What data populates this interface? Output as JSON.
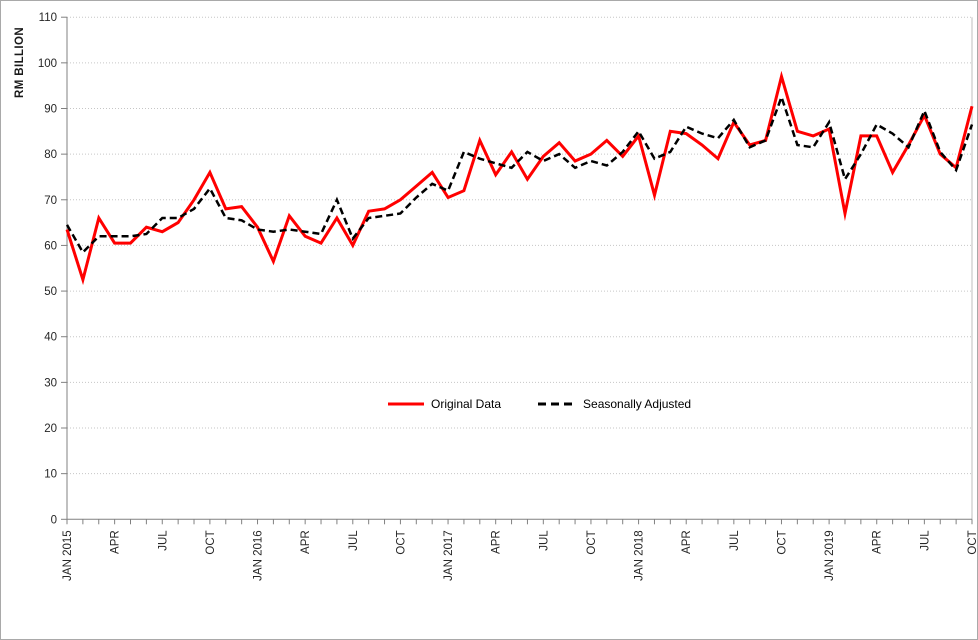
{
  "window": {
    "background": "#FFFFFF",
    "border_color": "#A9A9A9"
  },
  "colors": {
    "gridline": "#C6C6C6",
    "axis_line": "#808080",
    "tick_label": "#262626",
    "plot_right_border": "#BFBFBF",
    "series_original": "#FF0000",
    "series_adjusted": "#000000"
  },
  "chart_data": {
    "type": "line",
    "title": "",
    "xlabel": "",
    "ylabel": "RM BILLION",
    "ylim": [
      0,
      110
    ],
    "yticks": [
      0,
      10,
      20,
      30,
      40,
      50,
      60,
      70,
      80,
      90,
      100,
      110
    ],
    "grid": "horizontal-dotted",
    "legend_position": "center-middle",
    "n_points": 58,
    "x_range": "JAN 2015 - OCT 2019",
    "x_tick_interval": 3,
    "x_tick_labels": [
      "JAN 2015",
      "APR",
      "JUL",
      "OCT",
      "JAN 2016",
      "APR",
      "JUL",
      "OCT",
      "JAN 2017",
      "APR",
      "JUL",
      "OCT",
      "JAN 2018",
      "APR",
      "JUL",
      "OCT",
      "JAN 2019",
      "APR",
      "JUL",
      "OCT"
    ],
    "series": [
      {
        "name": "Original Data",
        "color": "#FF0000",
        "style": "solid",
        "values": [
          63.5,
          52.5,
          66,
          60.5,
          60.5,
          64,
          63,
          65,
          70,
          76,
          68,
          68.5,
          64,
          56.5,
          66.5,
          62,
          60.5,
          66,
          60,
          67.5,
          68,
          70,
          73,
          76,
          70.5,
          72,
          83,
          75.5,
          80.5,
          74.5,
          79.5,
          82.5,
          78.5,
          80,
          83,
          79.5,
          84,
          71,
          85,
          84.5,
          82,
          79,
          87,
          82,
          83,
          97,
          85,
          84,
          85.5,
          67,
          84,
          84,
          76,
          82,
          88.5,
          80,
          77,
          90.5
        ]
      },
      {
        "name": "Seasonally Adjusted",
        "color": "#000000",
        "style": "dashed",
        "values": [
          64.5,
          58.5,
          62,
          62,
          62,
          62.5,
          66,
          66,
          68,
          72.5,
          66,
          65.5,
          63.5,
          63,
          63.5,
          63,
          62.5,
          70,
          61.5,
          66,
          66.5,
          67,
          70.5,
          73.5,
          72,
          80.5,
          79,
          78,
          77,
          80.5,
          78.5,
          80,
          77,
          78.5,
          77.5,
          80.5,
          85,
          79,
          80.5,
          86,
          84.5,
          83.5,
          87.5,
          81.5,
          83,
          92.5,
          82,
          81.5,
          87,
          74.5,
          80,
          86.5,
          84.5,
          81.5,
          89.5,
          80.5,
          76.5,
          86.5
        ]
      }
    ]
  }
}
